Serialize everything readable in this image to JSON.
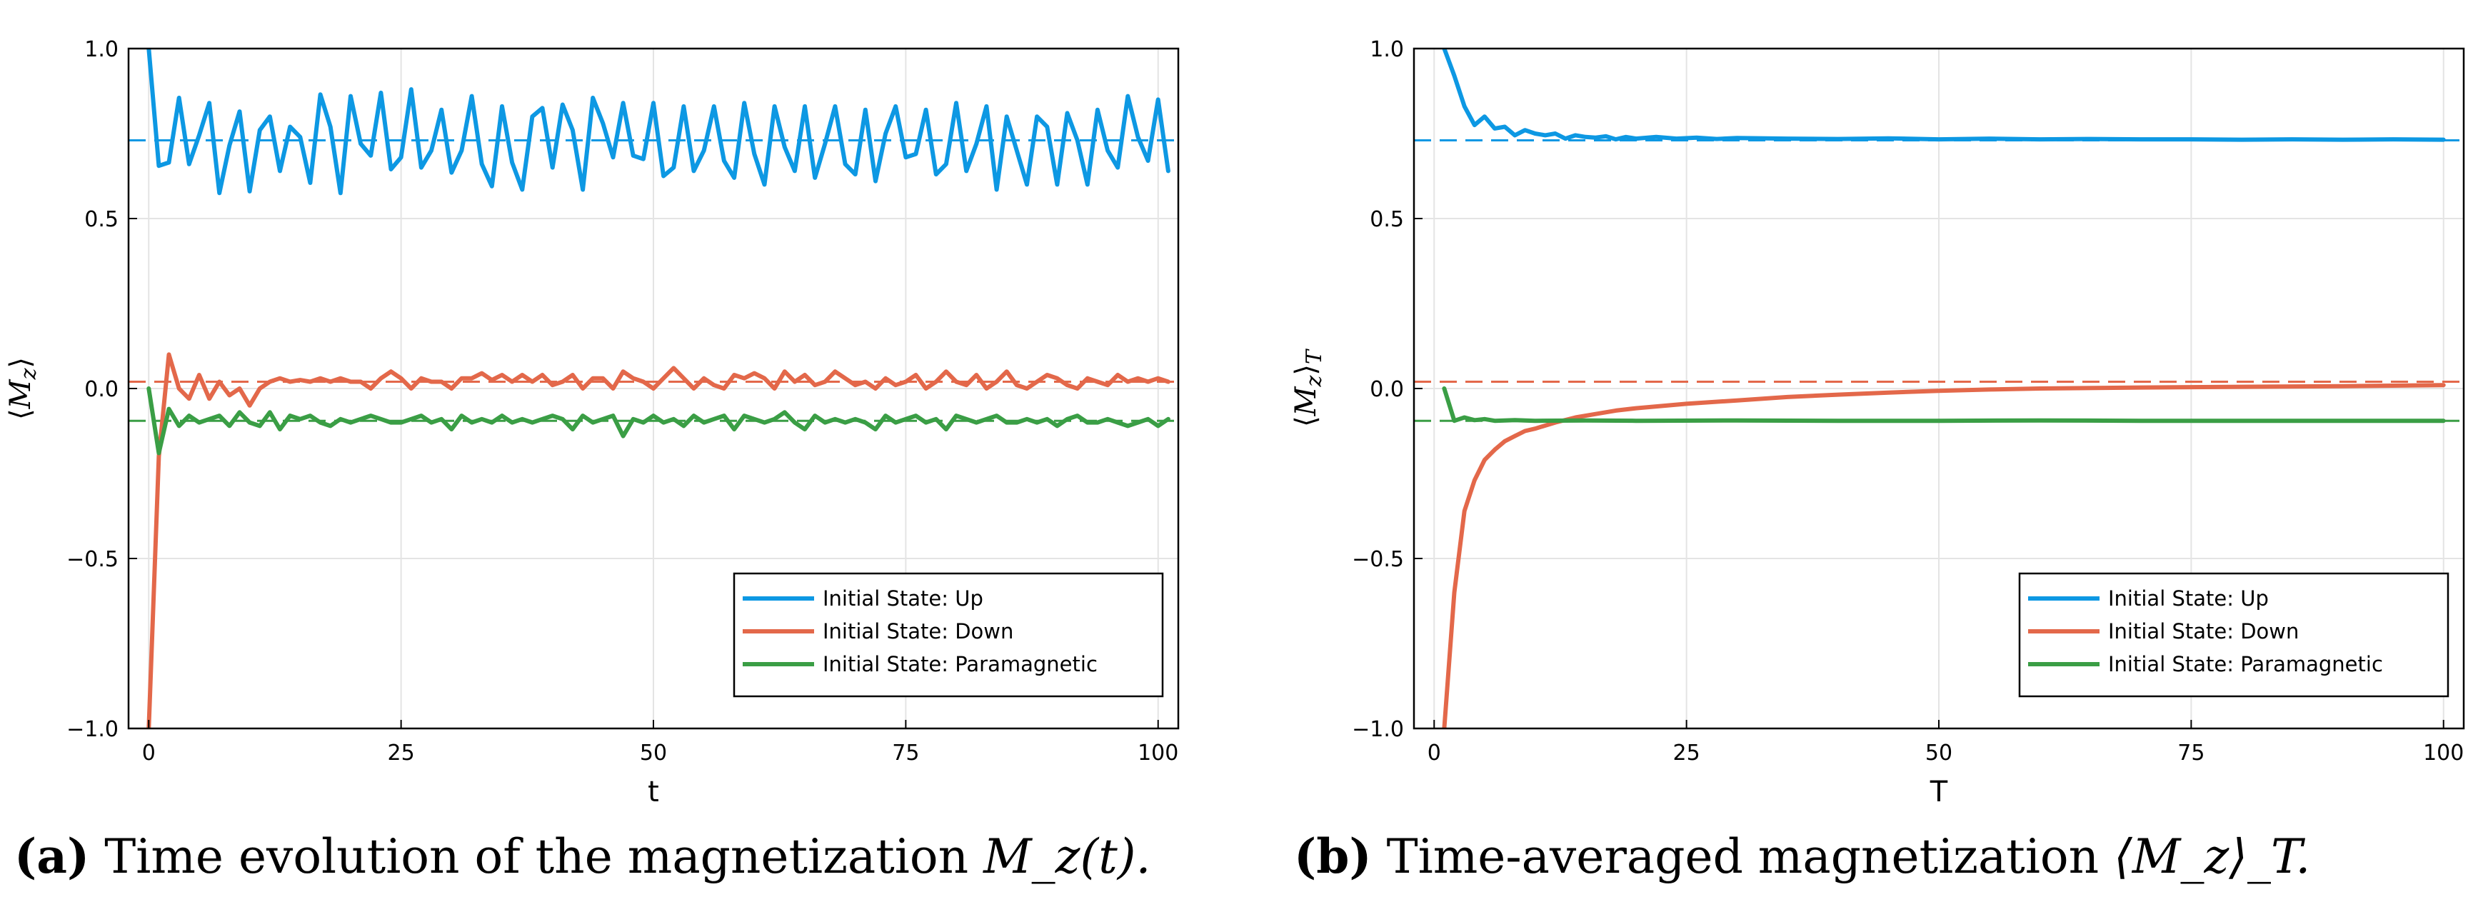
{
  "colors": {
    "up": "#0d98e3",
    "down": "#e3684a",
    "para": "#3a9e45",
    "grid": "#e4e4e4"
  },
  "captions": [
    {
      "tag": "(a)",
      "text": "Time evolution of the magnetization",
      "math": "M_z(t)."
    },
    {
      "tag": "(b)",
      "text": "Time-averaged magnetization",
      "math": "⟨M_z⟩_T."
    }
  ],
  "chart_data": [
    {
      "type": "line",
      "xlabel": "t",
      "ylabel": "⟨M_z⟩",
      "xlim": [
        -2,
        102
      ],
      "ylim": [
        -1.0,
        1.0
      ],
      "xticks": [
        0,
        25,
        50,
        75,
        100
      ],
      "yticks": [
        -1.0,
        -0.5,
        0.0,
        0.5,
        1.0
      ],
      "ytick_labels": [
        "−1.0",
        "−0.5",
        "0.0",
        "0.5",
        "1.0"
      ],
      "grid": true,
      "legend_position": "bottom-right",
      "reference_lines": [
        {
          "series": "up",
          "y": 0.73
        },
        {
          "series": "down",
          "y": 0.02
        },
        {
          "series": "para",
          "y": -0.095
        }
      ],
      "series": [
        {
          "key": "up",
          "name": "Initial State: Up",
          "x_start": 0,
          "x_step": 1,
          "values": [
            1.0,
            0.655,
            0.665,
            0.855,
            0.66,
            0.745,
            0.84,
            0.575,
            0.715,
            0.815,
            0.58,
            0.76,
            0.8,
            0.64,
            0.77,
            0.74,
            0.605,
            0.865,
            0.77,
            0.575,
            0.86,
            0.72,
            0.685,
            0.87,
            0.645,
            0.68,
            0.88,
            0.65,
            0.7,
            0.82,
            0.635,
            0.7,
            0.86,
            0.66,
            0.595,
            0.83,
            0.665,
            0.585,
            0.8,
            0.825,
            0.65,
            0.835,
            0.76,
            0.585,
            0.855,
            0.78,
            0.68,
            0.84,
            0.685,
            0.675,
            0.84,
            0.625,
            0.65,
            0.83,
            0.64,
            0.7,
            0.83,
            0.67,
            0.62,
            0.84,
            0.69,
            0.6,
            0.83,
            0.71,
            0.64,
            0.83,
            0.62,
            0.72,
            0.83,
            0.66,
            0.63,
            0.82,
            0.61,
            0.75,
            0.83,
            0.68,
            0.69,
            0.82,
            0.63,
            0.66,
            0.84,
            0.64,
            0.72,
            0.83,
            0.585,
            0.8,
            0.7,
            0.6,
            0.8,
            0.77,
            0.6,
            0.81,
            0.73,
            0.6,
            0.82,
            0.7,
            0.65,
            0.86,
            0.74,
            0.67,
            0.85,
            0.64
          ]
        },
        {
          "key": "down",
          "name": "Initial State: Down",
          "x_start": 0,
          "x_step": 1,
          "values": [
            -1.0,
            -0.2,
            0.1,
            0.0,
            -0.03,
            0.04,
            -0.03,
            0.02,
            -0.02,
            0.0,
            -0.05,
            0.0,
            0.02,
            0.03,
            0.02,
            0.025,
            0.02,
            0.03,
            0.02,
            0.03,
            0.02,
            0.02,
            0.0,
            0.03,
            0.05,
            0.03,
            0.0,
            0.03,
            0.02,
            0.02,
            0.0,
            0.03,
            0.03,
            0.045,
            0.025,
            0.04,
            0.02,
            0.04,
            0.02,
            0.04,
            0.01,
            0.02,
            0.04,
            0.0,
            0.03,
            0.03,
            0.0,
            0.05,
            0.03,
            0.02,
            0.0,
            0.03,
            0.06,
            0.03,
            0.0,
            0.03,
            0.01,
            0.0,
            0.04,
            0.03,
            0.045,
            0.03,
            0.0,
            0.05,
            0.02,
            0.04,
            0.01,
            0.02,
            0.05,
            0.03,
            0.01,
            0.02,
            0.0,
            0.03,
            0.01,
            0.02,
            0.04,
            0.0,
            0.02,
            0.05,
            0.02,
            0.01,
            0.04,
            0.0,
            0.02,
            0.05,
            0.01,
            0.0,
            0.02,
            0.04,
            0.03,
            0.01,
            0.0,
            0.03,
            0.02,
            0.01,
            0.04,
            0.02,
            0.03,
            0.02,
            0.03,
            0.02
          ]
        },
        {
          "key": "para",
          "name": "Initial State: Paramagnetic",
          "x_start": 0,
          "x_step": 1,
          "values": [
            0.0,
            -0.19,
            -0.06,
            -0.11,
            -0.08,
            -0.1,
            -0.09,
            -0.08,
            -0.11,
            -0.07,
            -0.1,
            -0.11,
            -0.07,
            -0.12,
            -0.08,
            -0.09,
            -0.08,
            -0.1,
            -0.11,
            -0.09,
            -0.1,
            -0.09,
            -0.08,
            -0.09,
            -0.1,
            -0.1,
            -0.09,
            -0.08,
            -0.1,
            -0.09,
            -0.12,
            -0.08,
            -0.1,
            -0.09,
            -0.1,
            -0.08,
            -0.1,
            -0.09,
            -0.1,
            -0.09,
            -0.08,
            -0.09,
            -0.12,
            -0.08,
            -0.1,
            -0.09,
            -0.08,
            -0.14,
            -0.09,
            -0.1,
            -0.08,
            -0.1,
            -0.09,
            -0.11,
            -0.08,
            -0.1,
            -0.09,
            -0.08,
            -0.12,
            -0.08,
            -0.09,
            -0.1,
            -0.09,
            -0.07,
            -0.1,
            -0.12,
            -0.08,
            -0.1,
            -0.09,
            -0.1,
            -0.09,
            -0.1,
            -0.12,
            -0.08,
            -0.1,
            -0.09,
            -0.08,
            -0.1,
            -0.09,
            -0.12,
            -0.08,
            -0.09,
            -0.1,
            -0.09,
            -0.08,
            -0.1,
            -0.1,
            -0.09,
            -0.1,
            -0.09,
            -0.11,
            -0.09,
            -0.08,
            -0.1,
            -0.1,
            -0.09,
            -0.1,
            -0.11,
            -0.1,
            -0.09,
            -0.11,
            -0.09
          ]
        }
      ]
    },
    {
      "type": "line",
      "xlabel": "T",
      "ylabel": "⟨M_z⟩_T",
      "xlim": [
        -2,
        102
      ],
      "ylim": [
        -1.0,
        1.0
      ],
      "xticks": [
        0,
        25,
        50,
        75,
        100
      ],
      "yticks": [
        -1.0,
        -0.5,
        0.0,
        0.5,
        1.0
      ],
      "ytick_labels": [
        "−1.0",
        "−0.5",
        "0.0",
        "0.5",
        "1.0"
      ],
      "grid": true,
      "legend_position": "bottom-right",
      "reference_lines": [
        {
          "series": "up",
          "y": 0.73
        },
        {
          "series": "down",
          "y": 0.02
        },
        {
          "series": "para",
          "y": -0.095
        }
      ],
      "series": [
        {
          "key": "up",
          "name": "Initial State: Up",
          "x": [
            1,
            2,
            3,
            4,
            5,
            6,
            7,
            8,
            9,
            10,
            11,
            12,
            13,
            14,
            15,
            16,
            17,
            18,
            19,
            20,
            22,
            24,
            26,
            28,
            30,
            35,
            40,
            45,
            50,
            55,
            60,
            65,
            70,
            75,
            80,
            85,
            90,
            95,
            100
          ],
          "values": [
            1.0,
            0.92,
            0.83,
            0.775,
            0.8,
            0.765,
            0.77,
            0.745,
            0.76,
            0.75,
            0.745,
            0.75,
            0.735,
            0.745,
            0.74,
            0.738,
            0.742,
            0.733,
            0.74,
            0.735,
            0.74,
            0.735,
            0.738,
            0.734,
            0.737,
            0.735,
            0.734,
            0.736,
            0.733,
            0.735,
            0.733,
            0.734,
            0.733,
            0.733,
            0.732,
            0.733,
            0.732,
            0.733,
            0.732
          ]
        },
        {
          "key": "down",
          "name": "Initial State: Down",
          "x": [
            1,
            2,
            3,
            4,
            5,
            6,
            7,
            8,
            9,
            10,
            12,
            14,
            16,
            18,
            20,
            25,
            30,
            35,
            40,
            45,
            50,
            55,
            60,
            70,
            80,
            90,
            100
          ],
          "values": [
            -1.0,
            -0.6,
            -0.36,
            -0.27,
            -0.21,
            -0.18,
            -0.155,
            -0.14,
            -0.125,
            -0.118,
            -0.1,
            -0.085,
            -0.075,
            -0.065,
            -0.058,
            -0.045,
            -0.035,
            -0.025,
            -0.018,
            -0.012,
            -0.007,
            -0.003,
            0.0,
            0.003,
            0.005,
            0.007,
            0.01
          ]
        },
        {
          "key": "para",
          "name": "Initial State: Paramagnetic",
          "x": [
            1,
            2,
            3,
            4,
            5,
            6,
            8,
            10,
            15,
            20,
            30,
            40,
            50,
            60,
            70,
            80,
            90,
            100
          ],
          "values": [
            0.0,
            -0.095,
            -0.085,
            -0.093,
            -0.09,
            -0.095,
            -0.093,
            -0.095,
            -0.094,
            -0.095,
            -0.094,
            -0.095,
            -0.095,
            -0.094,
            -0.095,
            -0.095,
            -0.095,
            -0.095
          ]
        }
      ]
    }
  ]
}
